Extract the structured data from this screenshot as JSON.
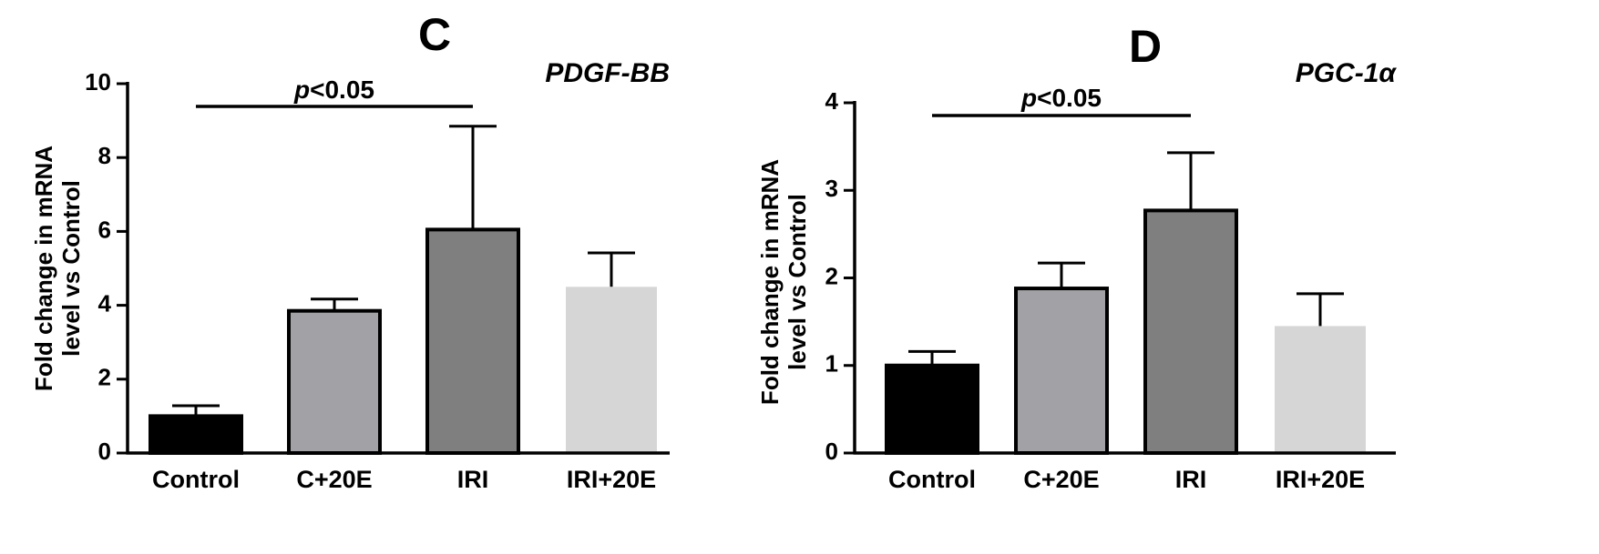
{
  "chart_data": [
    {
      "type": "bar",
      "panel": "C",
      "title": "PDGF-BB",
      "ylabel_lines": [
        "Fold change in mRNA",
        "level vs Control"
      ],
      "categories": [
        "Control",
        "C+20E",
        "IRI",
        "IRI+20E"
      ],
      "values": [
        1.0,
        3.85,
        6.05,
        4.5
      ],
      "errors": [
        0.28,
        0.32,
        2.8,
        0.92
      ],
      "colors": [
        "#000000",
        "#a2a1a6",
        "#7f7f7f",
        "#d6d6d6"
      ],
      "outlined": [
        true,
        true,
        true,
        false
      ],
      "ylim": [
        0,
        10
      ],
      "yticks": [
        0,
        2,
        4,
        6,
        8,
        10
      ],
      "significance": {
        "from": 0,
        "to": 2,
        "label_italic": "p",
        "label_rest": "<0.05"
      }
    },
    {
      "type": "bar",
      "panel": "D",
      "title": "PGC-1α",
      "ylabel_lines": [
        "Fold change in mRNA",
        "level vs Control"
      ],
      "categories": [
        "Control",
        "C+20E",
        "IRI",
        "IRI+20E"
      ],
      "values": [
        1.0,
        1.88,
        2.77,
        1.45
      ],
      "errors": [
        0.16,
        0.29,
        0.66,
        0.37
      ],
      "colors": [
        "#000000",
        "#a2a1a6",
        "#7f7f7f",
        "#d6d6d6"
      ],
      "outlined": [
        true,
        true,
        true,
        false
      ],
      "ylim": [
        0,
        4
      ],
      "yticks": [
        0,
        1,
        2,
        3,
        4
      ],
      "significance": {
        "from": 0,
        "to": 2,
        "label_italic": "p",
        "label_rest": "<0.05"
      }
    }
  ]
}
